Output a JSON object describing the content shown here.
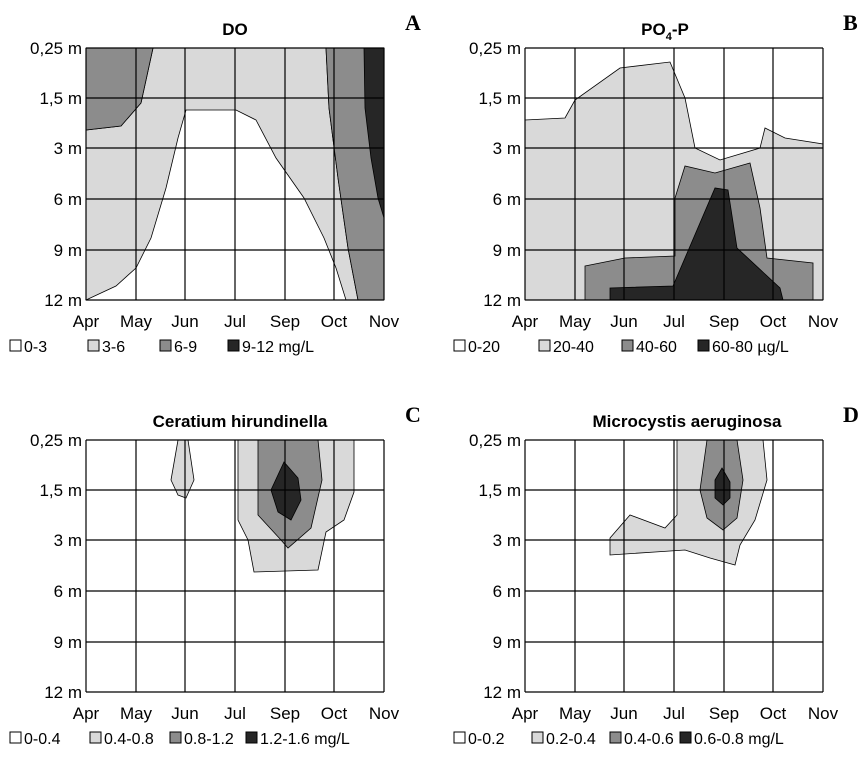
{
  "figure": {
    "panels": [
      {
        "id": "A",
        "title": "DO",
        "letter": "A",
        "unit": "mg/L",
        "legend": [
          "0-3",
          "3-6",
          "6-9",
          "9-12 mg/L"
        ]
      },
      {
        "id": "B",
        "title": "PO",
        "title_sub": "4",
        "title_suffix": "-P",
        "letter": "B",
        "unit": "µg/L",
        "legend": [
          "0-20",
          "20-40",
          "40-60",
          "60-80 µg/L"
        ]
      },
      {
        "id": "C",
        "title": "Ceratium hirundinella",
        "letter": "C",
        "unit": "mg/L",
        "legend": [
          "0-0.4",
          "0.4-0.8",
          "0.8-1.2",
          "1.2-1.6 mg/L"
        ]
      },
      {
        "id": "D",
        "title": "Microcystis aeruginosa",
        "letter": "D",
        "unit": "mg/L",
        "legend": [
          "0-0.2",
          "0.2-0.4",
          "0.4-0.6",
          "0.6-0.8 mg/L"
        ]
      }
    ]
  },
  "colors": {
    "level0": "#ffffff",
    "level1": "#d9d9d9",
    "level2": "#8c8c8c",
    "level3": "#262626",
    "grid": "#000000"
  },
  "chart_data": [
    {
      "type": "heatmap",
      "panel": "A",
      "title": "DO",
      "x": [
        "Apr",
        "May",
        "Jun",
        "Jul",
        "Sep",
        "Oct",
        "Nov"
      ],
      "y": [
        "0,25 m",
        "1,5 m",
        "3 m",
        "6 m",
        "9 m",
        "12 m"
      ],
      "levels": [
        "0-3",
        "3-6",
        "6-9",
        "9-12 mg/L"
      ],
      "values": [
        [
          2,
          2,
          1,
          1,
          1,
          2,
          3
        ],
        [
          2,
          2,
          1,
          1,
          1,
          2,
          3
        ],
        [
          1,
          1,
          1,
          0,
          1,
          2,
          3
        ],
        [
          1,
          1,
          0,
          0,
          0,
          1,
          3
        ],
        [
          1,
          1,
          0,
          0,
          0,
          1,
          2
        ],
        [
          0,
          1,
          0,
          0,
          0,
          1,
          2
        ]
      ]
    },
    {
      "type": "heatmap",
      "panel": "B",
      "title": "PO4-P",
      "x": [
        "Apr",
        "May",
        "Jun",
        "Jul",
        "Sep",
        "Oct",
        "Nov"
      ],
      "y": [
        "0,25 m",
        "1,5 m",
        "3 m",
        "6 m",
        "9 m",
        "12 m"
      ],
      "levels": [
        "0-20",
        "20-40",
        "40-60",
        "60-80 µg/L"
      ],
      "values": [
        [
          0,
          0,
          0,
          0,
          0,
          0,
          0
        ],
        [
          0,
          0,
          1,
          1,
          0,
          0,
          0
        ],
        [
          1,
          1,
          1,
          1,
          0,
          1,
          1
        ],
        [
          1,
          1,
          1,
          2,
          2,
          1,
          1
        ],
        [
          1,
          1,
          2,
          2,
          3,
          2,
          1
        ],
        [
          1,
          1,
          2,
          3,
          3,
          2,
          1
        ]
      ]
    },
    {
      "type": "heatmap",
      "panel": "C",
      "title": "Ceratium hirundinella",
      "x": [
        "Apr",
        "May",
        "Jun",
        "Jul",
        "Sep",
        "Oct",
        "Nov"
      ],
      "y": [
        "0,25 m",
        "1,5 m",
        "3 m",
        "6 m",
        "9 m",
        "12 m"
      ],
      "levels": [
        "0-0.4",
        "0.4-0.8",
        "0.8-1.2",
        "1.2-1.6 mg/L"
      ],
      "values": [
        [
          0,
          0,
          1,
          0,
          2,
          1,
          0
        ],
        [
          0,
          0,
          1,
          1,
          3,
          1,
          0
        ],
        [
          0,
          0,
          0,
          1,
          2,
          1,
          0
        ],
        [
          0,
          0,
          0,
          0,
          1,
          0,
          0
        ],
        [
          0,
          0,
          0,
          0,
          0,
          0,
          0
        ],
        [
          0,
          0,
          0,
          0,
          0,
          0,
          0
        ]
      ]
    },
    {
      "type": "heatmap",
      "panel": "D",
      "title": "Microcystis aeruginosa",
      "x": [
        "Apr",
        "May",
        "Jun",
        "Jul",
        "Sep",
        "Oct",
        "Nov"
      ],
      "y": [
        "0,25 m",
        "1,5 m",
        "3 m",
        "6 m",
        "9 m",
        "12 m"
      ],
      "levels": [
        "0-0.2",
        "0.2-0.4",
        "0.4-0.6",
        "0.6-0.8 mg/L"
      ],
      "values": [
        [
          0,
          0,
          0,
          1,
          2,
          1,
          0
        ],
        [
          0,
          0,
          0,
          1,
          3,
          1,
          0
        ],
        [
          0,
          0,
          1,
          1,
          1,
          0,
          0
        ],
        [
          0,
          0,
          0,
          0,
          0,
          0,
          0
        ],
        [
          0,
          0,
          0,
          0,
          0,
          0,
          0
        ],
        [
          0,
          0,
          0,
          0,
          0,
          0,
          0
        ]
      ]
    }
  ]
}
